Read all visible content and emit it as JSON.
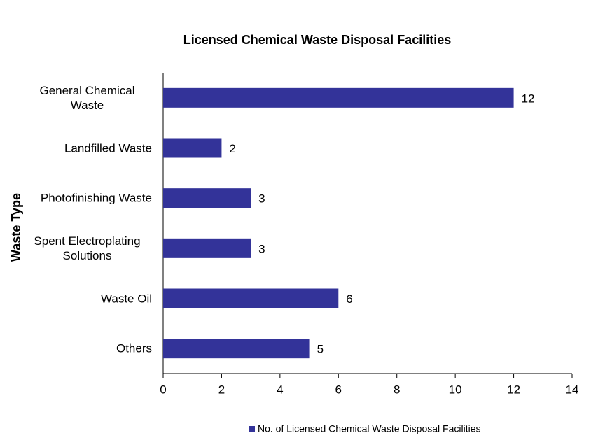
{
  "chart_data": {
    "type": "hbar",
    "title": "Licensed Chemical Waste Disposal Facilities",
    "y_axis_label": "Waste Type",
    "categories": [
      "General Chemical Waste",
      "Landfilled Waste",
      "Photofinishing Waste",
      "Spent Electroplating Solutions",
      "Waste Oil",
      "Others"
    ],
    "series": [
      {
        "name": "No. of Licensed Chemical Waste Disposal Facilities",
        "color": "#333399",
        "values": [
          12,
          2,
          3,
          3,
          6,
          5
        ]
      }
    ],
    "xlim": [
      0,
      14
    ],
    "xticks": [
      0,
      2,
      4,
      6,
      8,
      10,
      12,
      14
    ],
    "grid": false,
    "legend": "bottom"
  }
}
